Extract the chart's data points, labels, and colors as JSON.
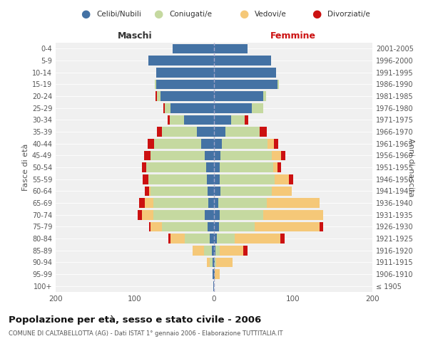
{
  "age_groups": [
    "100+",
    "95-99",
    "90-94",
    "85-89",
    "80-84",
    "75-79",
    "70-74",
    "65-69",
    "60-64",
    "55-59",
    "50-54",
    "45-49",
    "40-44",
    "35-39",
    "30-34",
    "25-29",
    "20-24",
    "15-19",
    "10-14",
    "5-9",
    "0-4"
  ],
  "birth_years": [
    "≤ 1905",
    "1906-1910",
    "1911-1915",
    "1916-1920",
    "1921-1925",
    "1926-1930",
    "1931-1935",
    "1936-1940",
    "1941-1945",
    "1946-1950",
    "1951-1955",
    "1956-1960",
    "1961-1965",
    "1966-1970",
    "1971-1975",
    "1976-1980",
    "1981-1985",
    "1986-1990",
    "1991-1995",
    "1996-2000",
    "2001-2005"
  ],
  "male": {
    "celibi": [
      1,
      2,
      2,
      3,
      5,
      8,
      12,
      7,
      8,
      9,
      10,
      12,
      16,
      22,
      38,
      55,
      68,
      73,
      73,
      83,
      52
    ],
    "coniugati": [
      0,
      0,
      3,
      10,
      32,
      58,
      65,
      70,
      72,
      74,
      76,
      68,
      60,
      44,
      18,
      7,
      4,
      2,
      0,
      0,
      0
    ],
    "vedovi": [
      0,
      0,
      4,
      14,
      18,
      14,
      14,
      10,
      2,
      0,
      0,
      0,
      0,
      0,
      0,
      0,
      0,
      0,
      0,
      0,
      0
    ],
    "divorziati": [
      0,
      0,
      0,
      0,
      3,
      2,
      5,
      8,
      5,
      7,
      5,
      8,
      8,
      6,
      3,
      2,
      2,
      0,
      0,
      0,
      0
    ]
  },
  "female": {
    "nubili": [
      0,
      1,
      1,
      2,
      4,
      6,
      7,
      5,
      8,
      7,
      7,
      8,
      10,
      14,
      22,
      48,
      62,
      80,
      78,
      72,
      42
    ],
    "coniugate": [
      0,
      0,
      2,
      5,
      22,
      45,
      55,
      62,
      65,
      70,
      68,
      65,
      58,
      44,
      17,
      14,
      4,
      2,
      0,
      0,
      0
    ],
    "vedove": [
      0,
      6,
      20,
      30,
      58,
      82,
      76,
      66,
      25,
      18,
      5,
      12,
      8,
      0,
      0,
      0,
      0,
      0,
      0,
      0,
      0
    ],
    "divorziate": [
      0,
      0,
      0,
      5,
      5,
      5,
      0,
      0,
      0,
      5,
      5,
      5,
      5,
      9,
      4,
      0,
      0,
      0,
      0,
      0,
      0
    ]
  },
  "colors": {
    "celibi": "#4472a4",
    "coniugati": "#c5d9a0",
    "vedovi": "#f5c878",
    "divorziati": "#cc1111"
  },
  "title": "Popolazione per età, sesso e stato civile - 2006",
  "subtitle": "COMUNE DI CALTABELLOTTA (AG) - Dati ISTAT 1° gennaio 2006 - Elaborazione TUTTITALIA.IT",
  "xlabel_left": "Maschi",
  "xlabel_right": "Femmine",
  "ylabel_left": "Fasce di età",
  "ylabel_right": "Anni di nascita",
  "xlim": 200,
  "legend_labels": [
    "Celibi/Nubili",
    "Coniugati/e",
    "Vedovi/e",
    "Divorziati/e"
  ],
  "bg_color": "#f0f0f0"
}
